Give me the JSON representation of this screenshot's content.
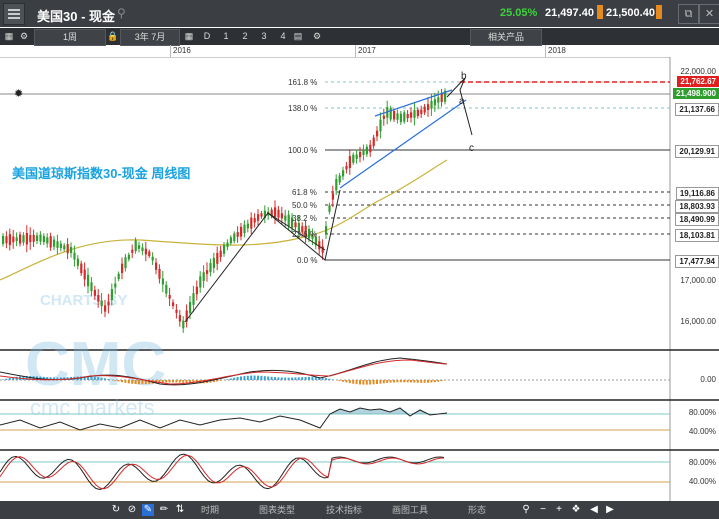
{
  "header": {
    "title": "美国30 - 现金",
    "change_pct": "25.05%",
    "bid": "21,497.40",
    "ask": "21,500.40"
  },
  "toolbar": {
    "interval": "1周",
    "range": "3年 7月",
    "drawing_items": [
      "D",
      "1",
      "2",
      "3",
      "4"
    ],
    "related": "相关产品"
  },
  "timeline": {
    "years": [
      "2016",
      "2017",
      "2018"
    ]
  },
  "chart": {
    "watermark_title": "美国道琼斯指数30-现金 周线图",
    "watermark_brand": "CHARTS BY",
    "watermark_logo": "CMC",
    "watermark_sub": "cmc markets",
    "fib_labels": [
      "161.8 %",
      "138.0 %",
      "100.0 %",
      "61.8 %",
      "50.0 %",
      "38.2 %",
      "23.6 %",
      "0.0 %"
    ],
    "wave_labels": {
      "b": "b",
      "a": "a",
      "c": "c"
    },
    "price_axis": {
      "top": "22,000.00",
      "red_tag": "21,762.67",
      "green_tag": "21,498.900",
      "levels": [
        "21,137.66",
        "20,129.91",
        "19,116.86",
        "18,803.93",
        "18,490.99",
        "18,103.81",
        "17,477.94",
        "17,000.00",
        "16,000.00"
      ]
    },
    "macd_axis": "0.00",
    "rsi_axis": [
      "80.00%",
      "40.00%"
    ],
    "stoch_axis": [
      "80.00%",
      "40.00%"
    ],
    "colors": {
      "up": "#2f9e2f",
      "down": "#d42a2a",
      "ma": "#c8b23a",
      "fib": "#555555",
      "channel": "#2a6fd6"
    }
  },
  "bottom": {
    "menus": [
      "时期",
      "图表类型",
      "技术指标",
      "画图工具",
      "形态"
    ]
  }
}
